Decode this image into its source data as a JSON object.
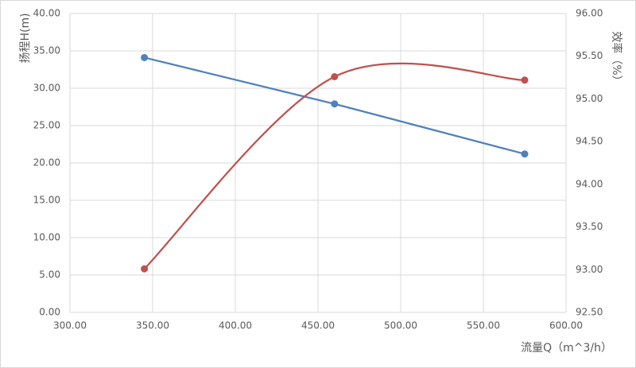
{
  "chart_data": {
    "type": "line",
    "x_label": "流量Q（m^3/h）",
    "y_label": "扬程H(m)",
    "y2_label": "效率（%）",
    "x": [
      345,
      460,
      575
    ],
    "series": [
      {
        "name": "扬程",
        "color": "#4f81bd",
        "values": [
          34.1,
          27.9,
          21.2
        ]
      },
      {
        "name": "效率",
        "color": "#c0504d",
        "values": [
          93.01,
          95.26,
          95.22
        ],
        "axis": "y2",
        "smooth": true
      }
    ],
    "xlim": [
      300,
      600
    ],
    "xticks": [
      {
        "value": 300,
        "label": "300.00"
      },
      {
        "value": 350,
        "label": "350.00"
      },
      {
        "value": 400,
        "label": "400.00"
      },
      {
        "value": 450,
        "label": "450.00"
      },
      {
        "value": 500,
        "label": "500.00"
      },
      {
        "value": 550,
        "label": "550.00"
      },
      {
        "value": 600,
        "label": "600.00"
      }
    ],
    "ylim": [
      0,
      40
    ],
    "yticks": [
      {
        "value": 0,
        "label": "0.00"
      },
      {
        "value": 5,
        "label": "5.00"
      },
      {
        "value": 10,
        "label": "10.00"
      },
      {
        "value": 15,
        "label": "15.00"
      },
      {
        "value": 20,
        "label": "20.00"
      },
      {
        "value": 25,
        "label": "25.00"
      },
      {
        "value": 30,
        "label": "30.00"
      },
      {
        "value": 35,
        "label": "35.00"
      },
      {
        "value": 40,
        "label": "40.00"
      }
    ],
    "y2lim": [
      92.5,
      96
    ],
    "y2ticks": [
      {
        "value": 92.5,
        "label": "92.50"
      },
      {
        "value": 93,
        "label": "93.00"
      },
      {
        "value": 93.5,
        "label": "93.50"
      },
      {
        "value": 94,
        "label": "94.00"
      },
      {
        "value": 94.5,
        "label": "94.50"
      },
      {
        "value": 95,
        "label": "95.00"
      },
      {
        "value": 95.5,
        "label": "95.50"
      },
      {
        "value": 96,
        "label": "96.00"
      }
    ],
    "grid": true
  }
}
